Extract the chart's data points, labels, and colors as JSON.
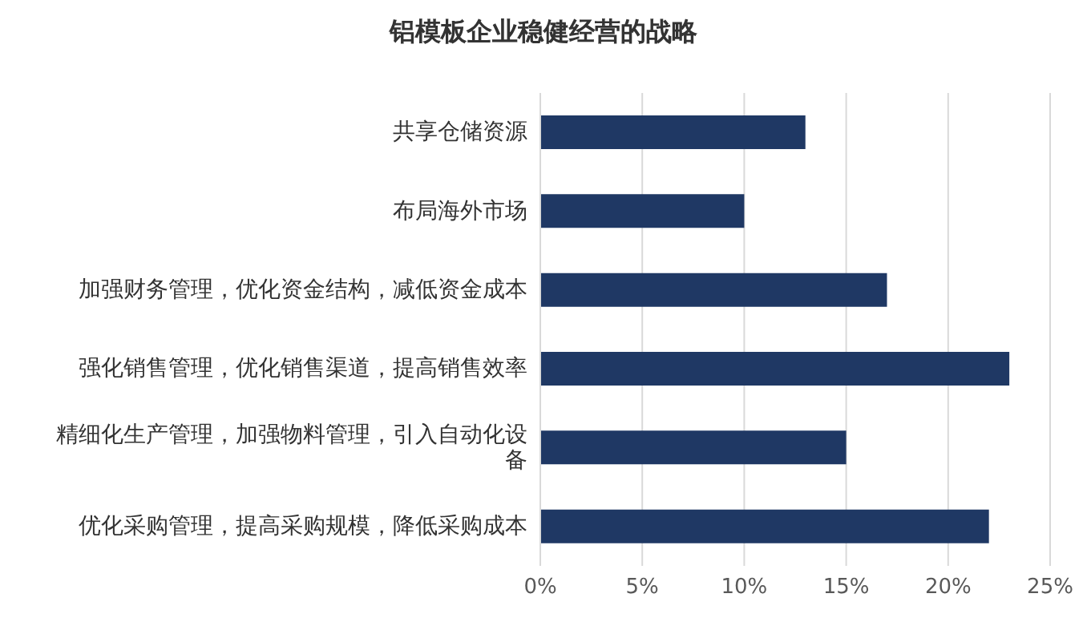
{
  "chart_data": {
    "type": "bar",
    "title": "铝模板企业稳健经营的战略",
    "orientation": "horizontal",
    "categories": [
      "共享仓储资源",
      "布局海外市场",
      "加强财务管理，优化资金结构，减低资金成本",
      "强化销售管理，优化销售渠道，提高销售效率",
      "精细化生产管理，加强物料管理，引入自动化设备",
      "优化采购管理，提高采购规模，降低采购成本"
    ],
    "values": [
      13,
      10,
      17,
      23,
      15,
      22
    ],
    "color": "#1f3864",
    "xlim": [
      0,
      25
    ],
    "xticks": [
      {
        "value": 0,
        "label": "0%"
      },
      {
        "value": 5,
        "label": "5%"
      },
      {
        "value": 10,
        "label": "10%"
      },
      {
        "value": 15,
        "label": "15%"
      },
      {
        "value": 20,
        "label": "20%"
      },
      {
        "value": 25,
        "label": "25%"
      }
    ],
    "grid": "x"
  }
}
